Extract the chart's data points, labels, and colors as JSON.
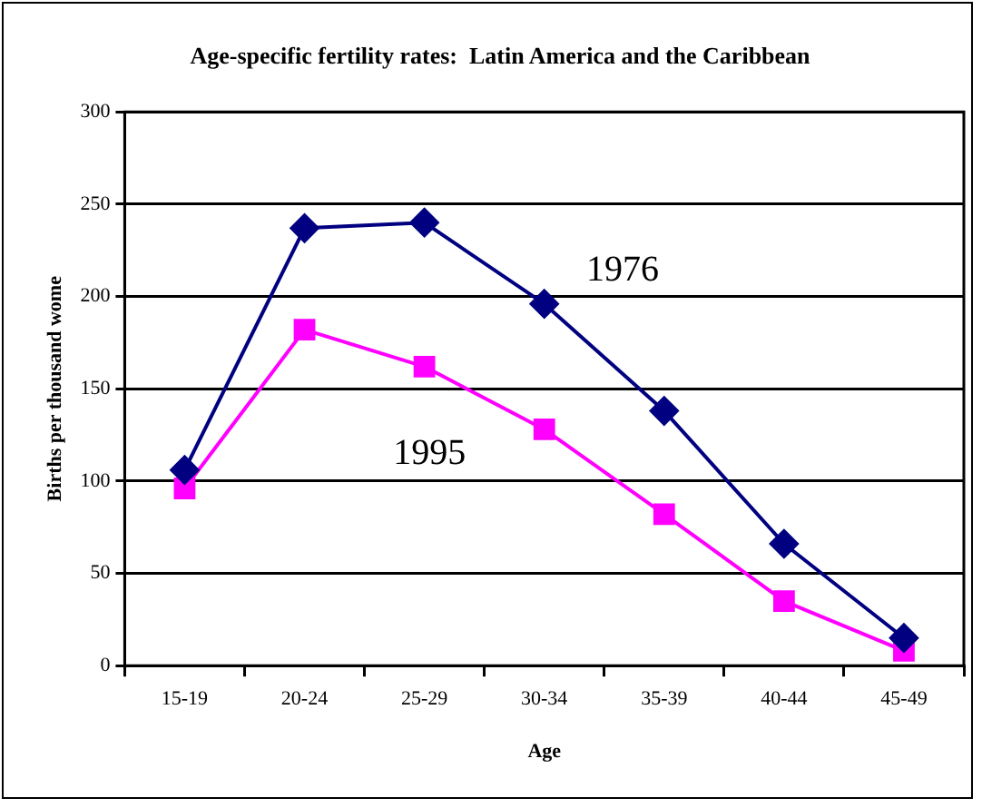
{
  "chart_data": {
    "type": "line",
    "title": "Age-specific fertility rates:  Latin America and the Caribbean",
    "xlabel": "Age",
    "ylabel": "Births per thousand wome",
    "categories": [
      "15-19",
      "20-24",
      "25-29",
      "30-34",
      "35-39",
      "40-44",
      "45-49"
    ],
    "series": [
      {
        "name": "1976",
        "color": "#000080",
        "marker": "diamond",
        "values": [
          106,
          237,
          240,
          196,
          138,
          66,
          15
        ]
      },
      {
        "name": "1995",
        "color": "#ff00ff",
        "marker": "square",
        "values": [
          96,
          182,
          162,
          128,
          82,
          35,
          8
        ]
      }
    ],
    "ylim": [
      0,
      300
    ],
    "yticks": [
      0,
      50,
      100,
      150,
      200,
      250,
      300
    ],
    "grid": "y",
    "legend": false
  }
}
